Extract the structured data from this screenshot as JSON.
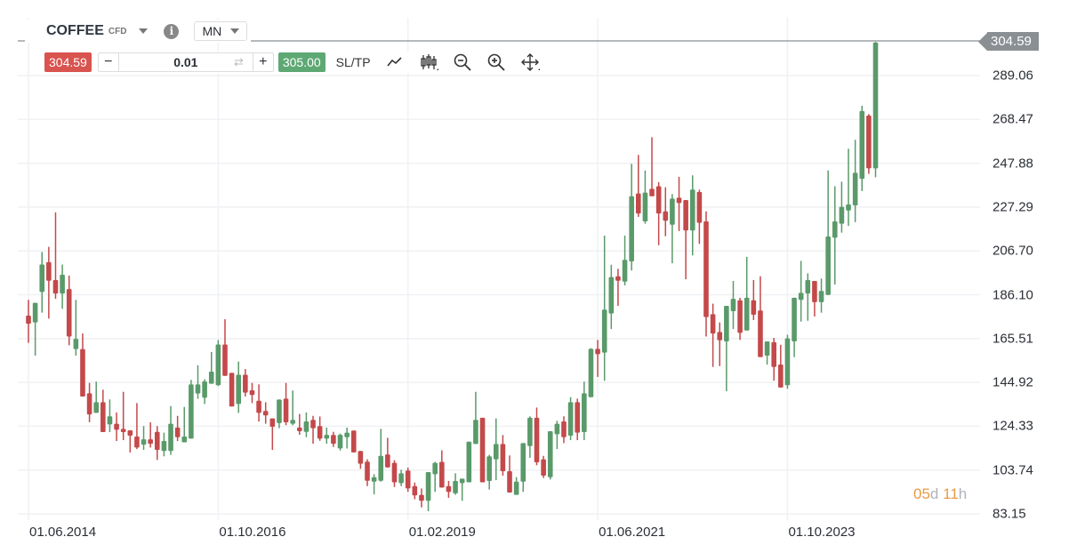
{
  "header": {
    "symbol": "COFFEE",
    "type": "CFD",
    "timeframe": "MN"
  },
  "toolbar": {
    "sell_price": "304.59",
    "quantity": "0.01",
    "minus": "−",
    "plus": "+",
    "buy_price": "305.00",
    "sltp": "SL/TP"
  },
  "icons": [
    "chevron-down-icon",
    "info-icon",
    "swap-icon",
    "line-chart-icon",
    "candlestick-icon",
    "zoom-out-icon",
    "zoom-in-icon",
    "move-icon"
  ],
  "colors": {
    "up": "#5a9a6a",
    "down": "#c4494a",
    "sell": "#d9534f",
    "buy": "#5ea874",
    "price_tag": "#8a8f93",
    "timer_accent": "#e99a45"
  },
  "timer": {
    "days": "05",
    "d": "d",
    "hours": "11",
    "h": "h"
  },
  "chart_data": {
    "type": "candlestick",
    "title": "",
    "current_price": "304.59",
    "ylim": [
      83.15,
      304.59
    ],
    "y_ticks": [
      "289.06",
      "268.47",
      "247.88",
      "227.29",
      "206.70",
      "186.10",
      "165.51",
      "144.92",
      "124.33",
      "103.74",
      "83.15"
    ],
    "x_ticks": [
      {
        "label": "01.06.2014",
        "index": 0
      },
      {
        "label": "01.10.2016",
        "index": 28
      },
      {
        "label": "01.02.2019",
        "index": 56
      },
      {
        "label": "01.06.2021",
        "index": 84
      },
      {
        "label": "01.10.2023",
        "index": 112
      }
    ],
    "grid": true,
    "ohlc": [
      [
        176.3,
        183.7,
        163.5,
        172.5
      ],
      [
        173.1,
        182.3,
        157.5,
        182.3
      ],
      [
        187.4,
        206.2,
        177.7,
        200.3
      ],
      [
        201.4,
        208.6,
        174.9,
        192.7
      ],
      [
        193.0,
        224.8,
        184.2,
        186.7
      ],
      [
        186.7,
        200.3,
        179.5,
        195.5
      ],
      [
        188.8,
        195.1,
        162.4,
        166.5
      ],
      [
        160.6,
        183.7,
        157.5,
        165.4
      ],
      [
        160.6,
        167.9,
        138.3,
        138.3
      ],
      [
        139.8,
        144.7,
        126.2,
        129.9
      ],
      [
        130.6,
        145.3,
        130.6,
        135.6
      ],
      [
        135.6,
        141.5,
        121.6,
        121.6
      ],
      [
        125.2,
        136.9,
        121.6,
        129.0
      ],
      [
        125.5,
        130.8,
        117.4,
        122.7
      ],
      [
        123.1,
        140.5,
        117.8,
        121.6
      ],
      [
        122.4,
        122.4,
        112.0,
        119.9
      ],
      [
        119.5,
        135.2,
        113.6,
        114.3
      ],
      [
        115.7,
        124.4,
        113.2,
        118.2
      ],
      [
        118.2,
        126.2,
        114.3,
        116.1
      ],
      [
        121.7,
        124.4,
        108.5,
        113.2
      ],
      [
        112.7,
        121.3,
        110.2,
        117.4
      ],
      [
        112.7,
        133.8,
        110.9,
        125.5
      ],
      [
        123.7,
        129.2,
        117.4,
        119.2
      ],
      [
        116.8,
        133.4,
        116.8,
        119.5
      ],
      [
        118.5,
        146.1,
        118.5,
        144.0
      ],
      [
        139.7,
        153.0,
        137.2,
        144.0
      ],
      [
        137.7,
        146.4,
        134.8,
        145.4
      ],
      [
        144.3,
        159.2,
        144.3,
        150.0
      ],
      [
        143.6,
        164.9,
        143.2,
        162.7
      ],
      [
        162.7,
        174.6,
        148.0,
        148.0
      ],
      [
        149.4,
        149.4,
        133.6,
        133.6
      ],
      [
        134.8,
        154.7,
        130.6,
        148.5
      ],
      [
        148.5,
        151.2,
        138.3,
        140.1
      ],
      [
        141.2,
        144.7,
        135.2,
        139.0
      ],
      [
        136.3,
        144.0,
        126.5,
        130.6
      ],
      [
        131.5,
        135.6,
        125.5,
        129.4
      ],
      [
        128.0,
        128.0,
        113.2,
        124.1
      ],
      [
        125.8,
        136.9,
        123.4,
        136.9
      ],
      [
        137.3,
        144.7,
        124.8,
        126.2
      ],
      [
        125.5,
        141.1,
        124.8,
        127.3
      ],
      [
        123.7,
        130.1,
        120.3,
        122.0
      ],
      [
        121.7,
        130.8,
        119.2,
        126.6
      ],
      [
        127.3,
        129.2,
        116.1,
        123.4
      ],
      [
        124.4,
        128.9,
        117.5,
        118.5
      ],
      [
        118.5,
        123.7,
        116.1,
        120.3
      ],
      [
        120.2,
        121.7,
        114.6,
        116.1
      ],
      [
        113.9,
        120.9,
        112.9,
        120.3
      ],
      [
        119.2,
        123.7,
        113.9,
        121.3
      ],
      [
        122.3,
        122.3,
        112.0,
        112.0
      ],
      [
        112.7,
        112.7,
        104.3,
        106.7
      ],
      [
        107.7,
        108.8,
        96.2,
        98.7
      ],
      [
        98.3,
        101.8,
        92.3,
        100.4
      ],
      [
        98.7,
        123.1,
        98.3,
        110.4
      ],
      [
        111.1,
        118.9,
        105.0,
        105.0
      ],
      [
        107.1,
        108.4,
        95.8,
        98.0
      ],
      [
        97.6,
        103.9,
        96.2,
        102.2
      ],
      [
        103.5,
        104.9,
        93.5,
        95.1
      ],
      [
        96.2,
        97.9,
        90.0,
        91.8
      ],
      [
        92.1,
        95.1,
        86.2,
        89.3
      ],
      [
        89.3,
        102.8,
        84.4,
        102.8
      ],
      [
        101.8,
        107.6,
        93.5,
        107.1
      ],
      [
        107.6,
        113.0,
        95.5,
        95.5
      ],
      [
        96.2,
        98.6,
        90.7,
        93.5
      ],
      [
        92.8,
        102.2,
        92.1,
        98.6
      ],
      [
        97.6,
        99.7,
        89.3,
        99.7
      ],
      [
        98.0,
        117.1,
        98.0,
        117.1
      ],
      [
        116.0,
        140.5,
        116.0,
        127.3
      ],
      [
        128.3,
        128.3,
        98.0,
        98.0
      ],
      [
        98.6,
        110.9,
        94.6,
        110.2
      ],
      [
        108.8,
        128.0,
        99.0,
        116.0
      ],
      [
        116.0,
        120.2,
        101.1,
        103.2
      ],
      [
        103.2,
        110.6,
        93.2,
        93.2
      ],
      [
        92.1,
        100.4,
        92.1,
        98.3
      ],
      [
        98.3,
        116.4,
        93.5,
        116.4
      ],
      [
        115.0,
        129.0,
        109.5,
        128.3
      ],
      [
        128.3,
        133.1,
        106.0,
        107.4
      ],
      [
        108.8,
        110.4,
        100.0,
        101.1
      ],
      [
        100.4,
        122.0,
        99.3,
        122.0
      ],
      [
        120.6,
        126.9,
        113.6,
        125.5
      ],
      [
        126.6,
        129.0,
        116.4,
        119.2
      ],
      [
        119.9,
        138.0,
        117.8,
        135.6
      ],
      [
        135.6,
        137.3,
        117.8,
        121.3
      ],
      [
        121.6,
        145.3,
        117.8,
        139.8
      ],
      [
        138.0,
        161.0,
        138.0,
        160.7
      ],
      [
        160.7,
        164.9,
        147.5,
        158.2
      ],
      [
        158.9,
        213.9,
        145.7,
        179.1
      ],
      [
        177.3,
        200.2,
        170.0,
        194.4
      ],
      [
        194.8,
        198.3,
        180.9,
        192.7
      ],
      [
        192.3,
        213.9,
        190.5,
        202.5
      ],
      [
        201.8,
        247.6,
        197.5,
        232.4
      ],
      [
        233.7,
        251.8,
        222.7,
        224.3
      ],
      [
        220.6,
        244.5,
        219.5,
        234.1
      ],
      [
        235.9,
        260.1,
        232.4,
        232.4
      ],
      [
        237.1,
        239.0,
        209.4,
        224.3
      ],
      [
        225.3,
        236.6,
        213.6,
        220.9
      ],
      [
        219.0,
        233.4,
        200.9,
        231.3
      ],
      [
        231.7,
        241.5,
        216.0,
        229.2
      ],
      [
        230.6,
        230.6,
        193.4,
        216.3
      ],
      [
        216.3,
        242.2,
        204.6,
        235.5
      ],
      [
        234.4,
        235.5,
        210.0,
        219.9
      ],
      [
        220.6,
        225.3,
        166.5,
        175.6
      ],
      [
        177.0,
        181.9,
        152.2,
        167.9
      ],
      [
        168.6,
        173.1,
        152.6,
        164.7
      ],
      [
        164.2,
        180.9,
        140.8,
        180.9
      ],
      [
        178.4,
        192.6,
        170.0,
        184.2
      ],
      [
        183.5,
        184.7,
        164.9,
        168.2
      ],
      [
        169.3,
        203.9,
        169.3,
        184.7
      ],
      [
        183.5,
        193.0,
        174.2,
        176.7
      ],
      [
        178.7,
        194.8,
        156.8,
        156.8
      ],
      [
        157.5,
        164.2,
        153.3,
        164.2
      ],
      [
        163.8,
        165.8,
        145.7,
        152.2
      ],
      [
        153.3,
        162.6,
        142.5,
        142.5
      ],
      [
        143.6,
        167.3,
        141.9,
        165.6
      ],
      [
        164.2,
        184.7,
        156.8,
        184.7
      ],
      [
        183.7,
        202.0,
        173.5,
        187.0
      ],
      [
        186.7,
        196.2,
        173.9,
        193.0
      ],
      [
        192.6,
        192.6,
        175.9,
        182.6
      ],
      [
        182.6,
        193.7,
        177.7,
        187.9
      ],
      [
        186.0,
        244.5,
        186.0,
        213.5
      ],
      [
        212.9,
        237.1,
        190.9,
        220.6
      ],
      [
        219.5,
        239.2,
        215.3,
        227.4
      ],
      [
        225.7,
        254.7,
        218.5,
        228.5
      ],
      [
        228.1,
        258.9,
        220.2,
        243.4
      ],
      [
        240.6,
        274.9,
        234.8,
        272.4
      ],
      [
        270.3,
        271.0,
        242.9,
        245.5
      ],
      [
        245.5,
        304.9,
        241.3,
        304.59
      ]
    ]
  }
}
